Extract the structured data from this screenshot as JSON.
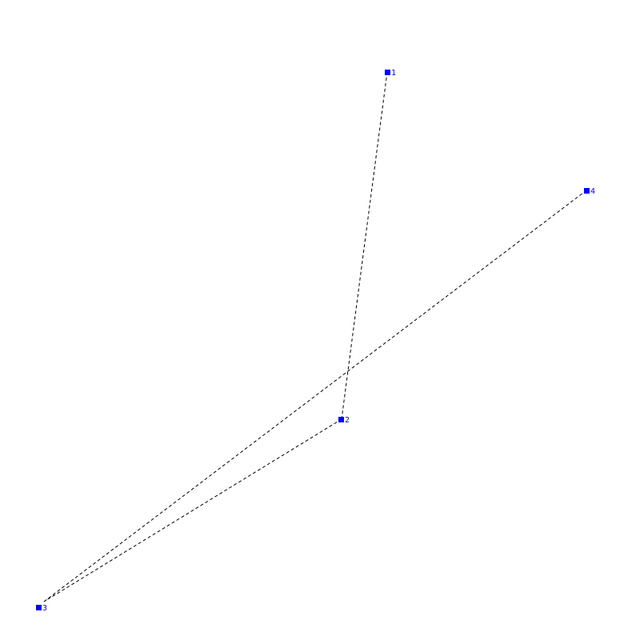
{
  "graph": {
    "node_color": "#0000ff",
    "edge_color": "#000000",
    "edge_style": "dashed",
    "nodes": [
      {
        "id": "1",
        "label": "1"
      },
      {
        "id": "2",
        "label": "2"
      },
      {
        "id": "3",
        "label": "3"
      },
      {
        "id": "4",
        "label": "4"
      }
    ],
    "edges": [
      {
        "from": "1",
        "to": "2"
      },
      {
        "from": "2",
        "to": "3"
      },
      {
        "from": "3",
        "to": "4"
      }
    ]
  }
}
